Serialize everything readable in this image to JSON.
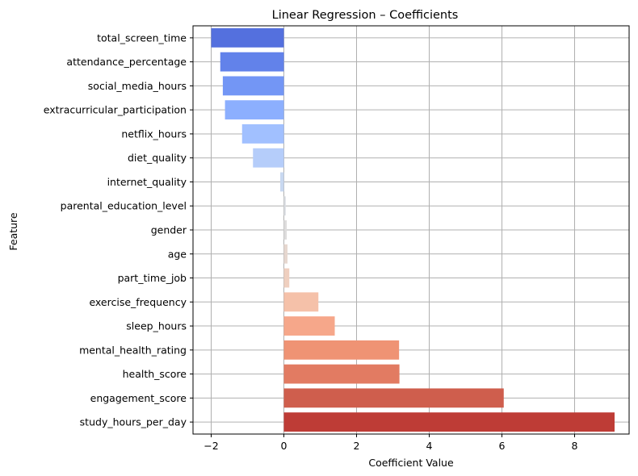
{
  "chart_data": {
    "type": "bar",
    "orientation": "horizontal",
    "title": "Linear Regression – Coefficients",
    "xlabel": "Coefficient Value",
    "ylabel": "Feature",
    "xlim": [
      -2.5,
      9.5
    ],
    "xticks": [
      -2,
      0,
      2,
      4,
      6,
      8
    ],
    "xtick_labels": [
      "−2",
      "0",
      "2",
      "4",
      "6",
      "8"
    ],
    "grid": true,
    "colormap": "coolwarm",
    "categories": [
      "total_screen_time",
      "attendance_percentage",
      "social_media_hours",
      "extracurricular_participation",
      "netflix_hours",
      "diet_quality",
      "internet_quality",
      "parental_education_level",
      "gender",
      "age",
      "part_time_job",
      "exercise_frequency",
      "sleep_hours",
      "mental_health_rating",
      "health_score",
      "engagement_score",
      "study_hours_per_day"
    ],
    "values": [
      -2.0,
      -1.75,
      -1.68,
      -1.62,
      -1.15,
      -0.85,
      -0.1,
      0.05,
      0.08,
      0.1,
      0.15,
      0.95,
      1.4,
      3.17,
      3.18,
      6.05,
      9.1
    ],
    "colors": [
      "#5470de",
      "#6282ea",
      "#7396f5",
      "#8caffe",
      "#a1c0ff",
      "#b5cdfa",
      "#c8d8f0",
      "#d9dce1",
      "#dddcdc",
      "#e6d7cf",
      "#efcfbf",
      "#f5c1a9",
      "#f6a78a",
      "#ef9374",
      "#e27b62",
      "#cf5e4d",
      "#be3c36"
    ]
  }
}
